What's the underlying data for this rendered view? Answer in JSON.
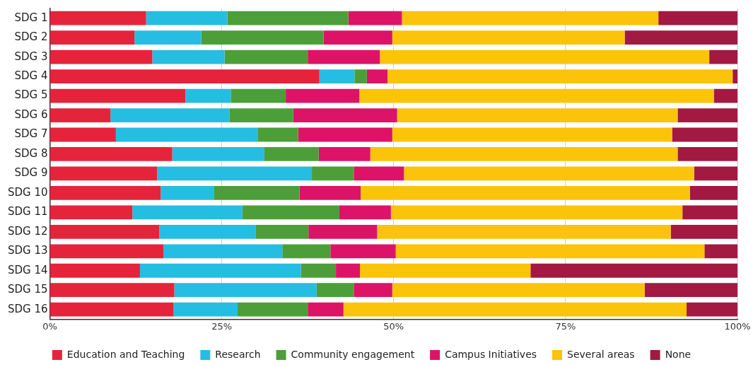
{
  "chart_data": {
    "type": "bar",
    "orientation": "horizontal",
    "stacked": true,
    "categories": [
      "SDG 1",
      "SDG 2",
      "SDG 3",
      "SDG 4",
      "SDG 5",
      "SDG 6",
      "SDG 7",
      "SDG 8",
      "SDG 9",
      "SDG 10",
      "SDG 11",
      "SDG 12",
      "SDG 13",
      "SDG 14",
      "SDG 15",
      "SDG 16"
    ],
    "series": [
      {
        "name": "Education and Teaching",
        "color": "#e5243b",
        "values": [
          14.0,
          12.3,
          14.9,
          39.2,
          19.7,
          8.8,
          9.6,
          17.8,
          15.6,
          16.1,
          12.0,
          15.9,
          16.5,
          13.1,
          18.1,
          18.0
        ]
      },
      {
        "name": "Research",
        "color": "#26bde2",
        "values": [
          11.8,
          9.7,
          10.5,
          5.1,
          6.6,
          17.3,
          20.6,
          13.4,
          22.5,
          7.8,
          16.0,
          14.0,
          17.3,
          23.4,
          20.7,
          9.3
        ]
      },
      {
        "name": "Community engagement",
        "color": "#4c9f38",
        "values": [
          17.6,
          17.8,
          12.1,
          1.8,
          8.0,
          9.3,
          5.9,
          7.9,
          6.1,
          12.4,
          14.1,
          7.7,
          7.0,
          5.1,
          5.4,
          10.2
        ]
      },
      {
        "name": "Campus Initiatives",
        "color": "#dd1367",
        "values": [
          7.8,
          10.0,
          10.5,
          3.0,
          10.7,
          15.1,
          13.7,
          7.5,
          7.3,
          8.9,
          7.5,
          10.0,
          9.5,
          3.5,
          5.6,
          5.2
        ]
      },
      {
        "name": "Several areas",
        "color": "#fcc30b",
        "values": [
          37.3,
          33.8,
          47.9,
          50.2,
          51.6,
          40.8,
          40.7,
          44.7,
          42.2,
          47.9,
          42.4,
          42.7,
          44.9,
          24.8,
          36.7,
          49.9
        ]
      },
      {
        "name": "None",
        "color": "#a21942",
        "values": [
          11.5,
          16.4,
          4.1,
          0.7,
          3.4,
          8.7,
          9.5,
          8.7,
          6.3,
          6.9,
          8.0,
          9.7,
          4.8,
          30.1,
          13.5,
          7.4
        ]
      }
    ],
    "xlim": [
      0,
      100
    ],
    "xticks": [
      {
        "value": 0,
        "label": "0%"
      },
      {
        "value": 25,
        "label": "25%"
      },
      {
        "value": 50,
        "label": "50%"
      },
      {
        "value": 75,
        "label": "75%"
      },
      {
        "value": 100,
        "label": "100%"
      }
    ],
    "grid": "x",
    "legend": "bottom"
  }
}
